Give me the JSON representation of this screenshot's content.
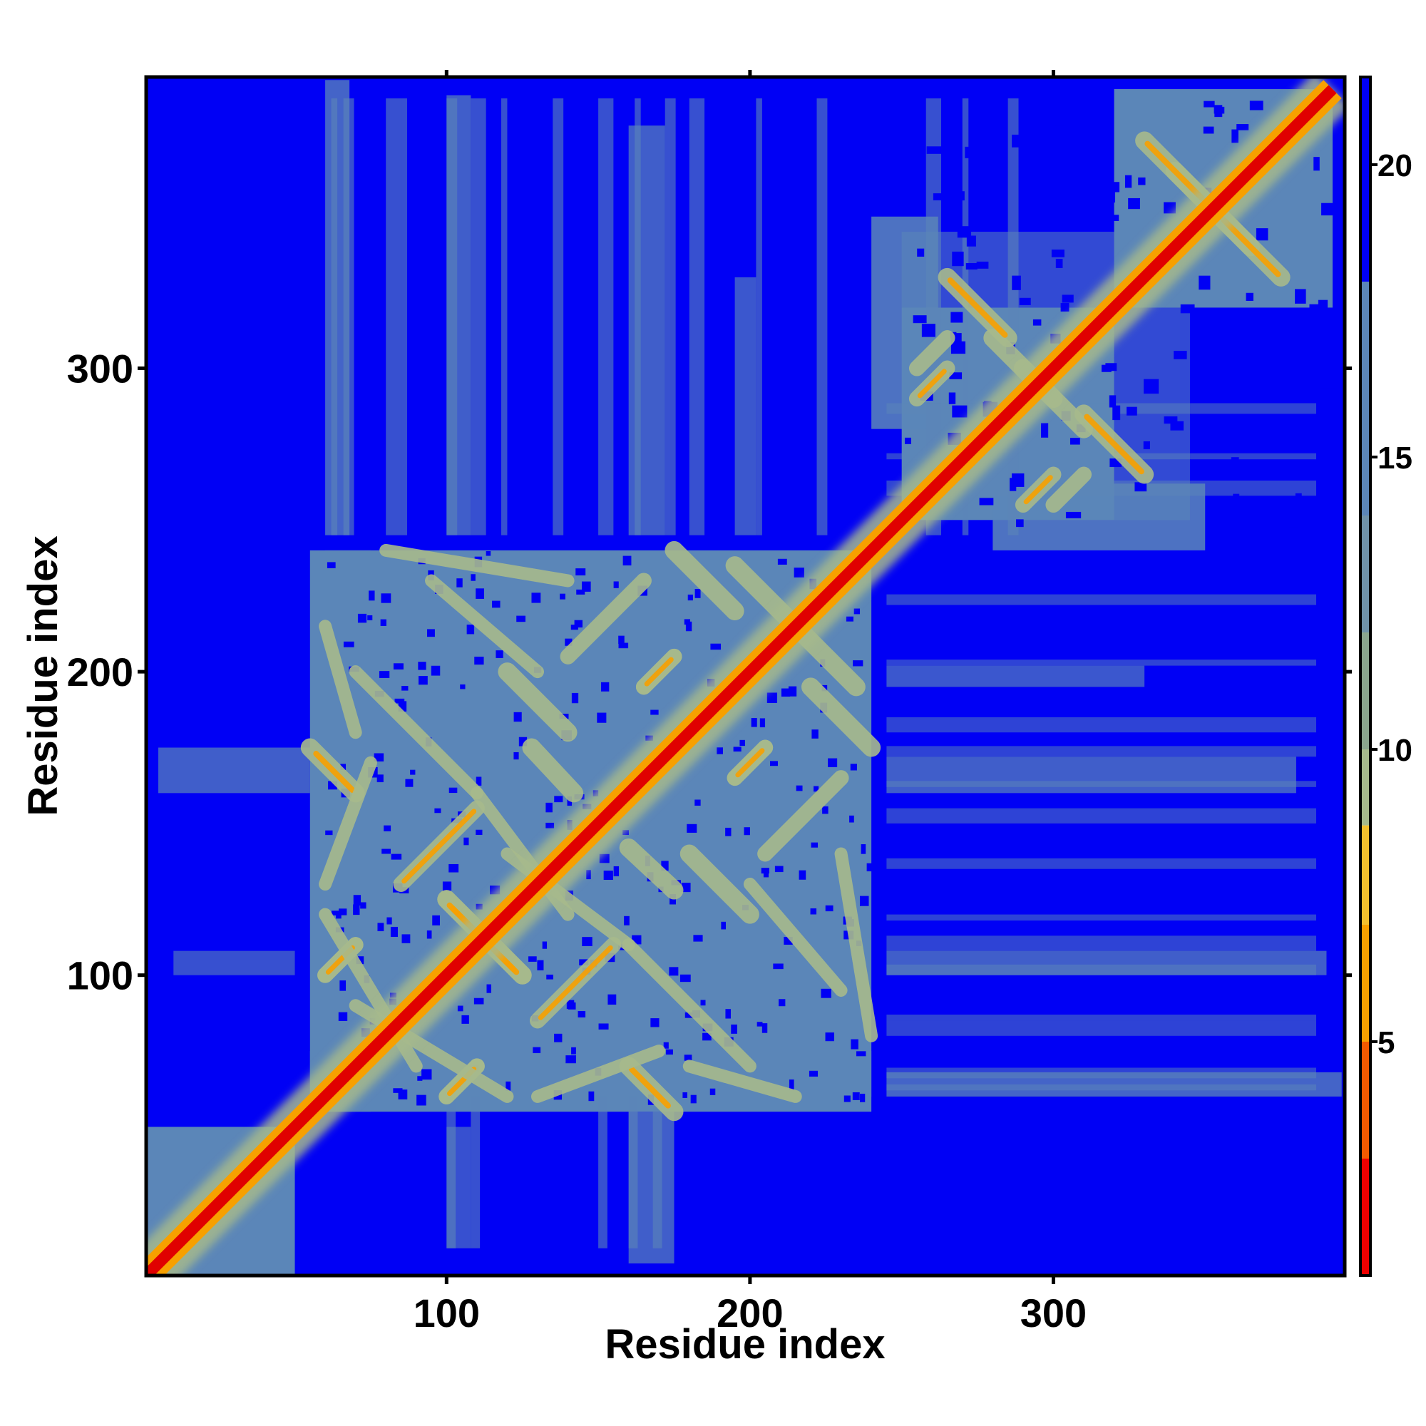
{
  "chart_data": {
    "type": "heatmap",
    "title": "",
    "xlabel": "Residue index",
    "ylabel": "Residue index",
    "xlim": [
      1,
      396
    ],
    "ylim": [
      1,
      396
    ],
    "x_ticks": [
      100,
      200,
      300
    ],
    "y_ticks": [
      100,
      200,
      300
    ],
    "x_tick_labels": [
      "100",
      "200",
      "300"
    ],
    "y_tick_labels": [
      "100",
      "200",
      "300"
    ],
    "colorbar": {
      "range": [
        1,
        21.5
      ],
      "ticks": [
        5,
        10,
        15,
        20
      ],
      "tick_labels": [
        "5",
        "10",
        "15",
        "20"
      ],
      "bands": [
        {
          "from": 1,
          "to": 3,
          "color": "#ee0000"
        },
        {
          "from": 3,
          "to": 5,
          "color": "#f25a00"
        },
        {
          "from": 5,
          "to": 7,
          "color": "#f7a000"
        },
        {
          "from": 7,
          "to": 8.7,
          "color": "#f2bf2e"
        },
        {
          "from": 8.7,
          "to": 10,
          "color": "#a6b98c"
        },
        {
          "from": 10,
          "to": 12,
          "color": "#8aa58e"
        },
        {
          "from": 12,
          "to": 14,
          "color": "#6f92a8"
        },
        {
          "from": 14,
          "to": 18,
          "color": "#5b86b8"
        },
        {
          "from": 18,
          "to": 21.5,
          "color": "#0000f5"
        }
      ]
    },
    "background_color": "#0000f5",
    "contact_color": "#5b86b8",
    "near_color": "#a6b98c",
    "close_color": "#f7a000",
    "diagonal_color": "#e00000",
    "domains": [
      {
        "from": 1,
        "to": 50
      },
      {
        "from": 55,
        "to": 240
      },
      {
        "from": 250,
        "to": 320
      },
      {
        "from": 320,
        "to": 392
      }
    ]
  }
}
